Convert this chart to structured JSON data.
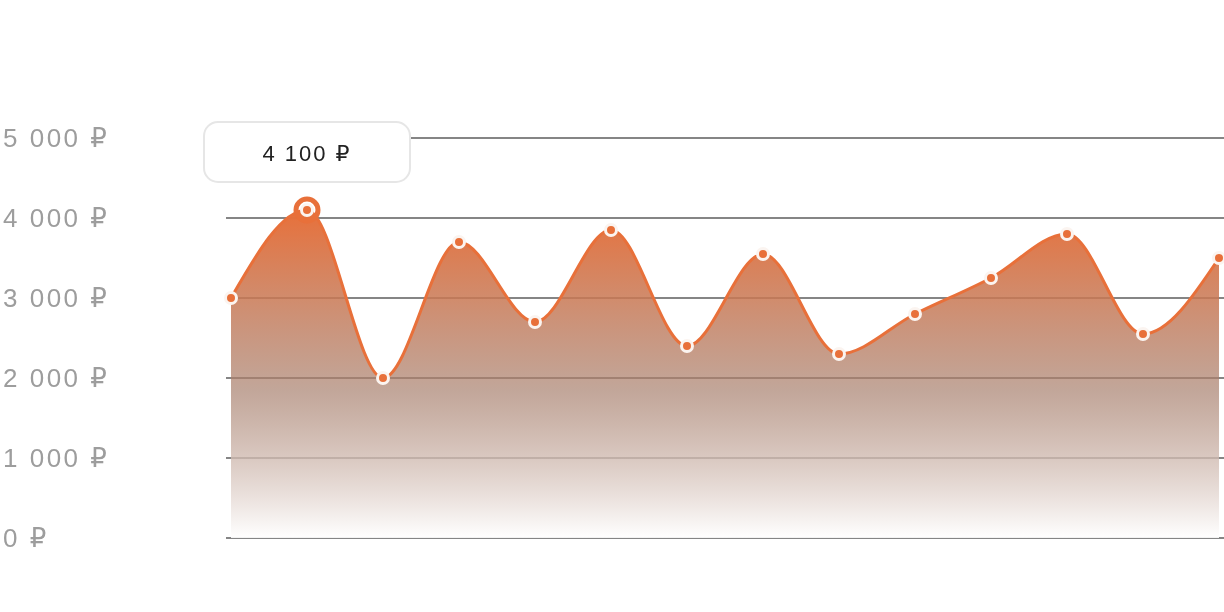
{
  "chart_data": {
    "type": "area",
    "categories": [
      null,
      null,
      null,
      null,
      null,
      null,
      null,
      null,
      null,
      null,
      null,
      null,
      null,
      null
    ],
    "values": [
      3000,
      4100,
      2000,
      3700,
      2700,
      3850,
      2400,
      3550,
      2300,
      2800,
      3250,
      3800,
      2550,
      3500
    ],
    "color": "#e8703a",
    "ylim": [
      0,
      5000
    ],
    "yticks": [
      {
        "value": 0,
        "label": "0 ₽"
      },
      {
        "value": 1000,
        "label": "1 000 ₽"
      },
      {
        "value": 2000,
        "label": "2 000 ₽"
      },
      {
        "value": 3000,
        "label": "3 000 ₽"
      },
      {
        "value": 4000,
        "label": "4 000 ₽"
      },
      {
        "value": 5000,
        "label": "5 000 ₽"
      }
    ],
    "grid": "y",
    "marker": "circle",
    "tick_labels": "y",
    "annotations": [
      {
        "text": "4 100 ₽",
        "y": 4100
      }
    ]
  }
}
